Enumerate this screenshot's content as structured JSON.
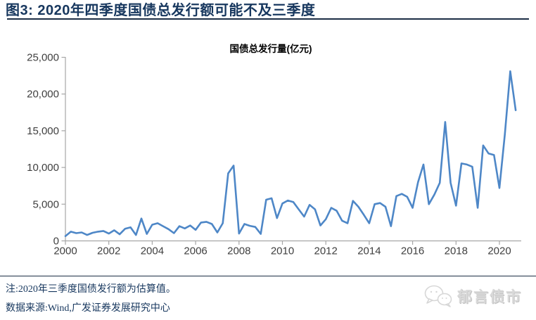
{
  "header": {
    "title": "图3: 2020年四季度国债总发行额可能不及三季度"
  },
  "chart_data": {
    "type": "line",
    "title": "国债总发行量(亿元)",
    "xlabel": "",
    "ylabel": "",
    "ylim": [
      0,
      25000
    ],
    "grid": false,
    "legend": false,
    "line_color": "#4E87C7",
    "axis_color": "#A6A6A6",
    "label_color": "#3f3f3f",
    "x_tick_labels": [
      "2000",
      "2002",
      "2004",
      "2006",
      "2008",
      "2010",
      "2012",
      "2014",
      "2016",
      "2018",
      "2020"
    ],
    "y_tick_values": [
      0,
      5000,
      10000,
      15000,
      20000,
      25000
    ],
    "y_tick_labels": [
      "0",
      "5,000",
      "10,000",
      "15,000",
      "20,000",
      "25,000"
    ],
    "series": [
      {
        "name": "国债总发行量",
        "start": "2000Q1",
        "end": "2020Q4",
        "frequency": "quarterly",
        "values": [
          650,
          1250,
          1050,
          1150,
          800,
          1100,
          1250,
          1350,
          1000,
          1450,
          900,
          1650,
          1850,
          800,
          3050,
          950,
          2200,
          2400,
          2000,
          1600,
          1050,
          2000,
          1700,
          2100,
          1500,
          2500,
          2600,
          2300,
          1150,
          2400,
          9200,
          10250,
          1000,
          2300,
          2050,
          1900,
          950,
          5600,
          5800,
          3100,
          5100,
          5500,
          5300,
          4300,
          3300,
          4900,
          4300,
          2100,
          2950,
          4500,
          4100,
          2750,
          2400,
          5450,
          4650,
          3550,
          2400,
          5000,
          5150,
          4650,
          2000,
          6100,
          6400,
          6000,
          4500,
          8000,
          10400,
          5000,
          6300,
          7900,
          16200,
          7900,
          4800,
          10550,
          10400,
          10100,
          4500,
          13000,
          11900,
          11700,
          7200,
          14500,
          23100,
          17800
        ]
      }
    ]
  },
  "notes": {
    "note": "注:2020年三季度国债发行额为估算值。",
    "source": "数据来源:Wind,广发证券发展研究中心"
  },
  "logo": {
    "text": "郁言债市"
  },
  "colors": {
    "accent_navy": "#17375E",
    "watermark_gray": "#D9D9D9"
  }
}
